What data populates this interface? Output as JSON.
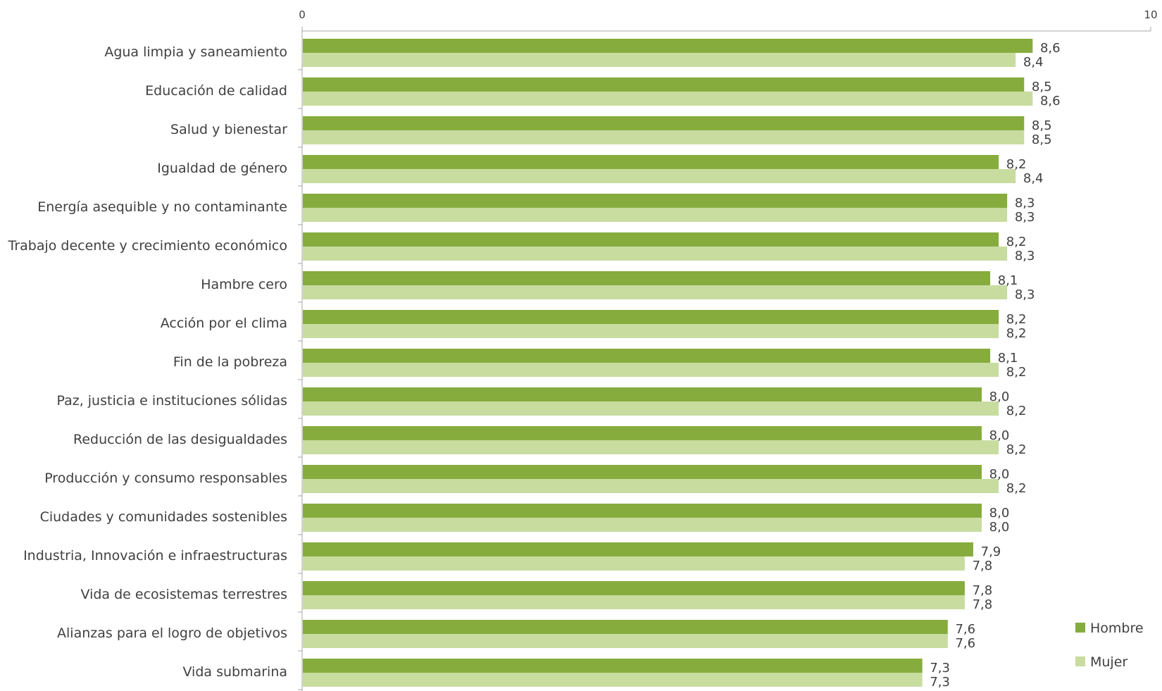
{
  "chart_data": {
    "type": "bar",
    "orientation": "horizontal",
    "xlim": [
      0,
      10
    ],
    "x_ticks": [
      "0",
      "10"
    ],
    "legend_position": "bottom-right",
    "categories": [
      "Agua limpia y saneamiento",
      "Educación de calidad",
      "Salud y bienestar",
      "Igualdad de género",
      "Energía asequible y no contaminante",
      "Trabajo decente y crecimiento económico",
      "Hambre cero",
      "Acción por el clima",
      "Fin de la  pobreza",
      "Paz, justicia e instituciones sólidas",
      "Reducción de las desigualdades",
      "Producción y consumo responsables",
      "Ciudades y comunidades sostenibles",
      "Industria, Innovación e infraestructuras",
      "Vida de ecosistemas terrestres",
      "Alianzas para el logro de objetivos",
      "Vida submarina"
    ],
    "series": [
      {
        "name": "Hombre",
        "color": "#86ac3e",
        "values": [
          8.6,
          8.5,
          8.5,
          8.2,
          8.3,
          8.2,
          8.1,
          8.2,
          8.1,
          8.0,
          8.0,
          8.0,
          8.0,
          7.9,
          7.8,
          7.6,
          7.3
        ],
        "labels": [
          "8,6",
          "8,5",
          "8,5",
          "8,2",
          "8,3",
          "8,2",
          "8,1",
          "8,2",
          "8,1",
          "8,0",
          "8,0",
          "8,0",
          "8,0",
          "7,9",
          "7,8",
          "7,6",
          "7,3"
        ]
      },
      {
        "name": "Mujer",
        "color": "#c8dca0",
        "values": [
          8.4,
          8.6,
          8.5,
          8.4,
          8.3,
          8.3,
          8.3,
          8.2,
          8.2,
          8.2,
          8.2,
          8.2,
          8.0,
          7.8,
          7.8,
          7.6,
          7.3
        ],
        "labels": [
          "8,4",
          "8,6",
          "8,5",
          "8,4",
          "8,3",
          "8,3",
          "8,3",
          "8,2",
          "8,2",
          "8,2",
          "8,2",
          "8,2",
          "8,0",
          "7,8",
          "7,8",
          "7,6",
          "7,3"
        ]
      }
    ]
  }
}
